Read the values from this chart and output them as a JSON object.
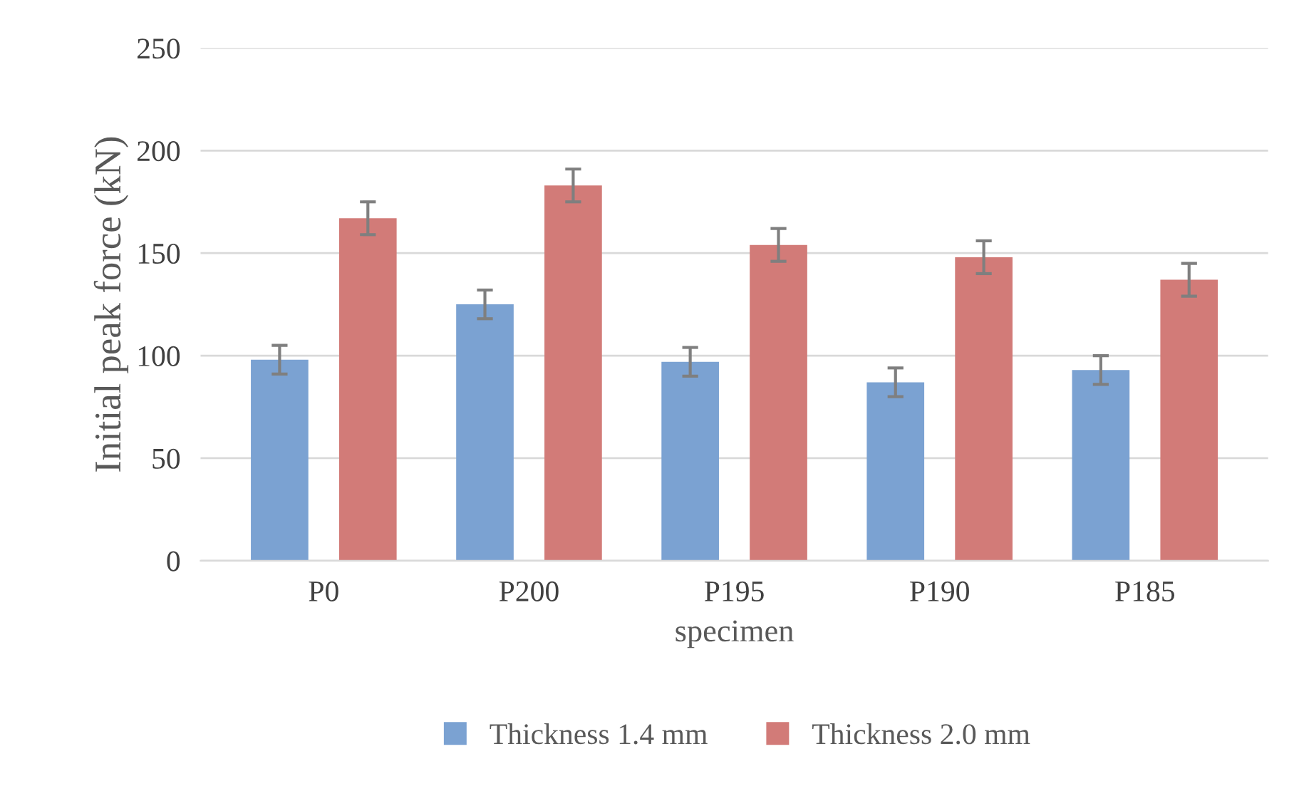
{
  "chart_data": {
    "type": "bar",
    "xlabel": "specimen",
    "ylabel": "Initial peak force (kN)",
    "categories": [
      "P0",
      "P200",
      "P195",
      "P190",
      "P185"
    ],
    "series": [
      {
        "name": "Thickness 1.4 mm",
        "color": "#7ba2d2",
        "values": [
          98,
          125,
          97,
          87,
          93
        ],
        "errors": [
          7,
          7,
          7,
          7,
          7
        ]
      },
      {
        "name": "Thickness 2.0 mm",
        "color": "#d27b78",
        "values": [
          167,
          183,
          154,
          148,
          137
        ],
        "errors": [
          8,
          8,
          8,
          8,
          8
        ]
      }
    ],
    "ylim": [
      0,
      250
    ],
    "yticks": [
      0,
      50,
      100,
      150,
      200,
      250
    ],
    "grid": "y",
    "legend": "bottom"
  }
}
